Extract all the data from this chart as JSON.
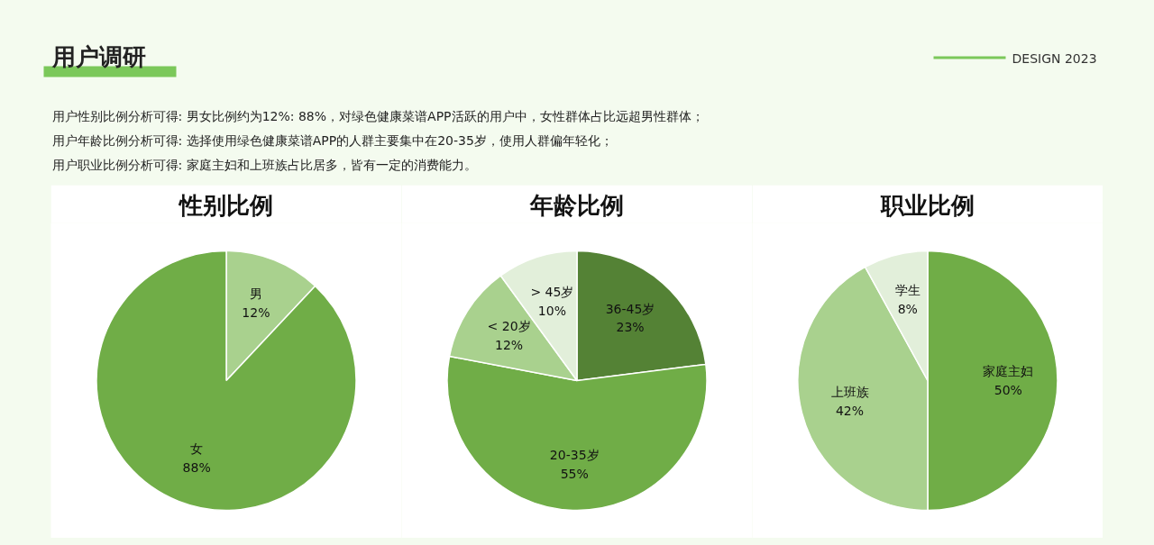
{
  "chart_data": [
    {
      "type": "other",
      "title": "用户调研",
      "annotations": [
        "DESIGN 2023",
        "用户性别比例分析可得: 男女比例约为12%: 88%，对绿色健康菜谱APP活跃的用户中，女性群体占比远超男性群体；",
        "用户年龄比例分析可得: 选择使用绿色健康菜谱APP的人群主要集中在20-35岁，使用人群偏年轻化；",
        "用户职业比例分析可得: 家庭主妇和上班族占比居多，皆有一定的消费能力。"
      ]
    },
    {
      "type": "pie",
      "title": "性别比例",
      "categories": [
        "男",
        "女"
      ],
      "values": [
        12,
        88
      ],
      "colors": [
        "#a9d18e",
        "#70ad47"
      ],
      "value_labels": [
        "12%",
        "88%"
      ]
    },
    {
      "type": "pie",
      "title": "年龄比例",
      "categories": [
        "36-45岁",
        "20-35岁",
        "< 20岁",
        "> 45岁"
      ],
      "values": [
        23,
        55,
        12,
        10
      ],
      "colors": [
        "#548235",
        "#70ad47",
        "#a9d18e",
        "#e2efda"
      ],
      "value_labels": [
        "23%",
        "55%",
        "12%",
        "10%"
      ]
    },
    {
      "type": "pie",
      "title": "职业比例",
      "categories": [
        "家庭主妇",
        "上班族",
        "学生"
      ],
      "values": [
        50,
        42,
        8
      ],
      "colors": [
        "#70ad47",
        "#a9d18e",
        "#e2efda"
      ],
      "value_labels": [
        "50%",
        "42%",
        "8%"
      ]
    }
  ]
}
